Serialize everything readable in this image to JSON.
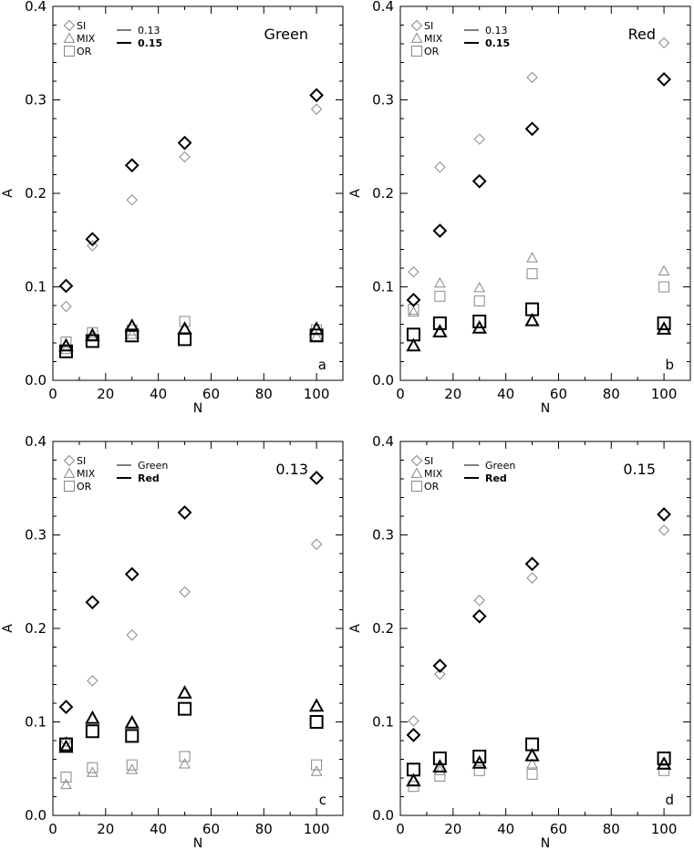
{
  "chart_data": [
    {
      "type": "scatter",
      "panel_label": "a",
      "title": "Green",
      "xlabel": "N",
      "ylabel": "A",
      "xlim": [
        0,
        110
      ],
      "ylim": [
        0,
        0.4
      ],
      "xticks": [
        "0",
        "20",
        "40",
        "60",
        "80",
        "100"
      ],
      "yticks": [
        "0.0",
        "0.1",
        "0.2",
        "0.3",
        "0.4"
      ],
      "legend_markers": [
        "SI",
        "MIX",
        "OR"
      ],
      "legend_lines": [
        "0.13",
        "0.15"
      ],
      "series": [
        {
          "style": "thin",
          "marker": "diamond",
          "x": [
            5,
            15,
            30,
            50,
            100
          ],
          "y": [
            0.079,
            0.144,
            0.193,
            0.239,
            0.29
          ]
        },
        {
          "style": "thin",
          "marker": "triangle",
          "x": [
            5,
            15,
            30,
            50,
            100
          ],
          "y": [
            0.033,
            0.046,
            0.049,
            0.055,
            0.047
          ]
        },
        {
          "style": "thin",
          "marker": "square",
          "x": [
            5,
            15,
            30,
            50,
            100
          ],
          "y": [
            0.041,
            0.051,
            0.054,
            0.063,
            0.054
          ]
        },
        {
          "style": "thick",
          "marker": "diamond",
          "x": [
            5,
            15,
            30,
            50,
            100
          ],
          "y": [
            0.101,
            0.151,
            0.23,
            0.254,
            0.305
          ]
        },
        {
          "style": "thick",
          "marker": "triangle",
          "x": [
            5,
            15,
            30,
            50,
            100
          ],
          "y": [
            0.037,
            0.048,
            0.058,
            0.055,
            0.055
          ]
        },
        {
          "style": "thick",
          "marker": "square",
          "x": [
            5,
            15,
            30,
            50,
            100
          ],
          "y": [
            0.031,
            0.042,
            0.048,
            0.044,
            0.048
          ]
        }
      ]
    },
    {
      "type": "scatter",
      "panel_label": "b",
      "title": "Red",
      "xlabel": "N",
      "ylabel": "A",
      "xlim": [
        0,
        110
      ],
      "ylim": [
        0,
        0.4
      ],
      "xticks": [
        "0",
        "20",
        "40",
        "60",
        "80",
        "100"
      ],
      "yticks": [
        "0.0",
        "0.1",
        "0.2",
        "0.3",
        "0.4"
      ],
      "legend_markers": [
        "SI",
        "MIX",
        "OR"
      ],
      "legend_lines": [
        "0.13",
        "0.15"
      ],
      "series": [
        {
          "style": "thin",
          "marker": "diamond",
          "x": [
            5,
            15,
            30,
            50,
            100
          ],
          "y": [
            0.116,
            0.228,
            0.258,
            0.324,
            0.361
          ]
        },
        {
          "style": "thin",
          "marker": "triangle",
          "x": [
            5,
            15,
            30,
            50,
            100
          ],
          "y": [
            0.073,
            0.104,
            0.099,
            0.131,
            0.117
          ]
        },
        {
          "style": "thin",
          "marker": "square",
          "x": [
            5,
            15,
            30,
            50,
            100
          ],
          "y": [
            0.076,
            0.09,
            0.085,
            0.114,
            0.1
          ]
        },
        {
          "style": "thick",
          "marker": "diamond",
          "x": [
            5,
            15,
            30,
            50,
            100
          ],
          "y": [
            0.086,
            0.16,
            0.213,
            0.269,
            0.322
          ]
        },
        {
          "style": "thick",
          "marker": "triangle",
          "x": [
            5,
            15,
            30,
            50,
            100
          ],
          "y": [
            0.037,
            0.052,
            0.056,
            0.064,
            0.055
          ]
        },
        {
          "style": "thick",
          "marker": "square",
          "x": [
            5,
            15,
            30,
            50,
            100
          ],
          "y": [
            0.049,
            0.061,
            0.063,
            0.076,
            0.061
          ]
        }
      ]
    },
    {
      "type": "scatter",
      "panel_label": "c",
      "title": "0.13",
      "xlabel": "N",
      "ylabel": "A",
      "xlim": [
        0,
        110
      ],
      "ylim": [
        0,
        0.4
      ],
      "xticks": [
        "0",
        "20",
        "40",
        "60",
        "80",
        "100"
      ],
      "yticks": [
        "0.0",
        "0.1",
        "0.2",
        "0.3",
        "0.4"
      ],
      "legend_markers": [
        "SI",
        "MIX",
        "OR"
      ],
      "legend_lines": [
        "Green",
        "Red"
      ],
      "series": [
        {
          "style": "thin",
          "marker": "diamond",
          "x": [
            5,
            15,
            30,
            50,
            100
          ],
          "y": [
            0.079,
            0.144,
            0.193,
            0.239,
            0.29
          ]
        },
        {
          "style": "thin",
          "marker": "triangle",
          "x": [
            5,
            15,
            30,
            50,
            100
          ],
          "y": [
            0.033,
            0.046,
            0.049,
            0.055,
            0.047
          ]
        },
        {
          "style": "thin",
          "marker": "square",
          "x": [
            5,
            15,
            30,
            50,
            100
          ],
          "y": [
            0.041,
            0.051,
            0.054,
            0.063,
            0.054
          ]
        },
        {
          "style": "thick",
          "marker": "diamond",
          "x": [
            5,
            15,
            30,
            50,
            100
          ],
          "y": [
            0.116,
            0.228,
            0.258,
            0.324,
            0.361
          ]
        },
        {
          "style": "thick",
          "marker": "triangle",
          "x": [
            5,
            15,
            30,
            50,
            100
          ],
          "y": [
            0.073,
            0.104,
            0.099,
            0.131,
            0.117
          ]
        },
        {
          "style": "thick",
          "marker": "square",
          "x": [
            5,
            15,
            30,
            50,
            100
          ],
          "y": [
            0.076,
            0.09,
            0.085,
            0.114,
            0.1
          ]
        }
      ]
    },
    {
      "type": "scatter",
      "panel_label": "d",
      "title": "0.15",
      "xlabel": "N",
      "ylabel": "A",
      "xlim": [
        0,
        110
      ],
      "ylim": [
        0,
        0.4
      ],
      "xticks": [
        "0",
        "20",
        "40",
        "60",
        "80",
        "100"
      ],
      "yticks": [
        "0.0",
        "0.1",
        "0.2",
        "0.3",
        "0.4"
      ],
      "legend_markers": [
        "SI",
        "MIX",
        "OR"
      ],
      "legend_lines": [
        "Green",
        "Red"
      ],
      "series": [
        {
          "style": "thin",
          "marker": "diamond",
          "x": [
            5,
            15,
            30,
            50,
            100
          ],
          "y": [
            0.101,
            0.151,
            0.23,
            0.254,
            0.305
          ]
        },
        {
          "style": "thin",
          "marker": "triangle",
          "x": [
            5,
            15,
            30,
            50,
            100
          ],
          "y": [
            0.037,
            0.048,
            0.058,
            0.055,
            0.055
          ]
        },
        {
          "style": "thin",
          "marker": "square",
          "x": [
            5,
            15,
            30,
            50,
            100
          ],
          "y": [
            0.031,
            0.042,
            0.048,
            0.044,
            0.048
          ]
        },
        {
          "style": "thick",
          "marker": "diamond",
          "x": [
            5,
            15,
            30,
            50,
            100
          ],
          "y": [
            0.086,
            0.16,
            0.213,
            0.269,
            0.322
          ]
        },
        {
          "style": "thick",
          "marker": "triangle",
          "x": [
            5,
            15,
            30,
            50,
            100
          ],
          "y": [
            0.037,
            0.052,
            0.056,
            0.064,
            0.055
          ]
        },
        {
          "style": "thick",
          "marker": "square",
          "x": [
            5,
            15,
            30,
            50,
            100
          ],
          "y": [
            0.049,
            0.061,
            0.063,
            0.076,
            0.061
          ]
        }
      ]
    }
  ]
}
